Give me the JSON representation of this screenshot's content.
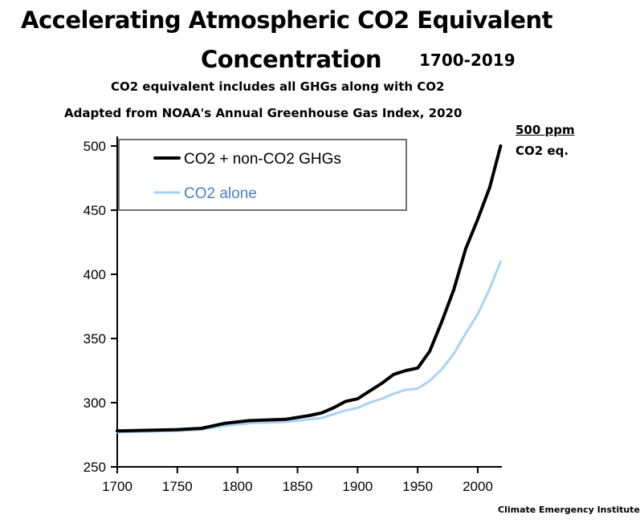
{
  "title_line1": "Accelerating Atmospheric CO2 Equivalent",
  "title_line2": "Concentration",
  "year_range": "1700-2019",
  "subtitle1": "CO2 equivalent includes all GHGs along with CO2",
  "subtitle2": "Adapted from NOAA's Annual Greenhouse Gas Index, 2020",
  "annotation_value": "500 ppm",
  "annotation_unit": "CO2 eq.",
  "credit": "Climate Emergency Institute",
  "colors": {
    "co2_eq": "#000000",
    "co2": "#a9d3f5"
  },
  "chart_data": {
    "type": "line",
    "xlim": [
      1700,
      2020
    ],
    "ylim": [
      250,
      500
    ],
    "x_ticks": [
      "1700",
      "1750",
      "1800",
      "1850",
      "1900",
      "1950",
      "2000"
    ],
    "y_ticks": [
      "250",
      "300",
      "350",
      "400",
      "450",
      "500"
    ],
    "legend_position": "top-left",
    "series": [
      {
        "name": "CO2 + non-CO2 GHGs",
        "x": [
          1700,
          1750,
          1770,
          1790,
          1810,
          1840,
          1860,
          1870,
          1880,
          1890,
          1900,
          1910,
          1920,
          1930,
          1940,
          1950,
          1960,
          1970,
          1980,
          1990,
          2000,
          2010,
          2019
        ],
        "y": [
          278,
          279,
          280,
          284,
          286,
          287,
          290,
          292,
          296,
          301,
          303,
          309,
          315,
          322,
          325,
          327,
          340,
          363,
          388,
          420,
          443,
          468,
          500
        ]
      },
      {
        "name": "CO2 alone",
        "x": [
          1700,
          1750,
          1770,
          1790,
          1810,
          1840,
          1860,
          1870,
          1880,
          1890,
          1900,
          1910,
          1920,
          1930,
          1940,
          1950,
          1960,
          1970,
          1980,
          1990,
          2000,
          2010,
          2019
        ],
        "y": [
          277,
          278,
          279,
          282,
          284,
          285,
          287,
          288,
          291,
          294,
          296,
          300,
          303,
          307,
          310,
          311,
          317,
          326,
          338,
          354,
          369,
          389,
          410
        ]
      }
    ]
  }
}
